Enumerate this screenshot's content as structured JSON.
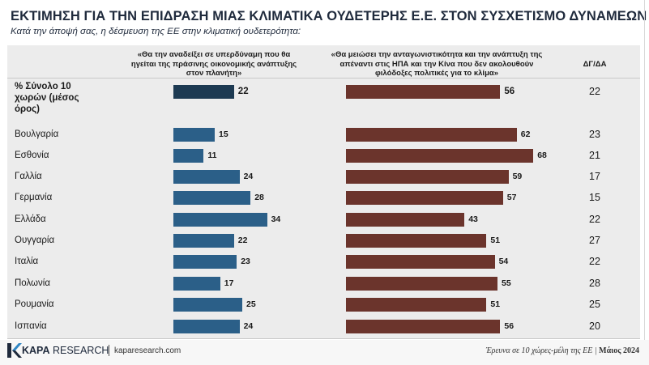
{
  "title": "ΕΚΤΙΜΗΣΗ ΓΙΑ ΤΗΝ ΕΠΙΔΡΑΣΗ ΜΙΑΣ ΚΛΙΜΑΤΙΚΑ ΟΥΔΕΤΕΡΗΣ Ε.Ε. ΣΤΟΝ ΣΥΣΧΕΤΙΣΜΟ ΔΥΝΑΜΕΩΝ",
  "subtitle": "Κατά την άποψή σας, η δέσμευση της ΕΕ στην κλιματική ουδετερότητα:",
  "headers": {
    "col1": "«Θα την αναδείξει σε υπερδύναμη που θα ηγείται της πράσινης  οικονομικής ανάπτυξης στον πλανήτη»",
    "col2": "«Θα μειώσει την ανταγωνιστικότητα και την ανάπτυξη της απέναντι στις ΗΠΑ και την Κίνα που δεν ακολουθούν φιλόδοξες πολιτικές για το κλίμα»",
    "col3": "ΔΓ/ΔΑ"
  },
  "colors": {
    "green_bar": "#2b5f88",
    "green_total_bar": "#1d3a52",
    "climate_bar": "#6b342c"
  },
  "chart_data": {
    "type": "bar",
    "orientation": "horizontal",
    "categories": [
      "% Σύνολο 10 χωρών (μέσος όρος)",
      "Βουλγαρία",
      "Εσθονία",
      "Γαλλία",
      "Γερμανία",
      "Ελλάδα",
      "Ουγγαρία",
      "Ιταλία",
      "Πολωνία",
      "Ρουμανία",
      "Ισπανία"
    ],
    "series": [
      {
        "name": "«Θα την αναδείξει σε υπερδύναμη που θα ηγείται της πράσινης  οικονομικής ανάπτυξης στον πλανήτη»",
        "values": [
          22,
          15,
          11,
          24,
          28,
          34,
          22,
          23,
          17,
          25,
          24
        ]
      },
      {
        "name": "«Θα μειώσει την ανταγωνιστικότητα και την ανάπτυξη της απέναντι στις ΗΠΑ και την Κίνα που δεν ακολουθούν φιλόδοξες πολιτικές για το κλίμα»",
        "values": [
          56,
          62,
          68,
          59,
          57,
          43,
          51,
          54,
          55,
          51,
          56
        ]
      },
      {
        "name": "ΔΓ/ΔΑ",
        "values": [
          22,
          23,
          21,
          17,
          15,
          22,
          27,
          22,
          28,
          25,
          20
        ]
      }
    ],
    "grid": false,
    "legend": "column headers"
  },
  "footer": {
    "brand_bold": "KAPA",
    "brand_rest": " RESEARCH",
    "site": "kaparesearch.com",
    "source_text": "Έρευνα σε 10 χώρες-μέλη της ΕΕ | ",
    "source_date": "Μάιος 2024"
  }
}
